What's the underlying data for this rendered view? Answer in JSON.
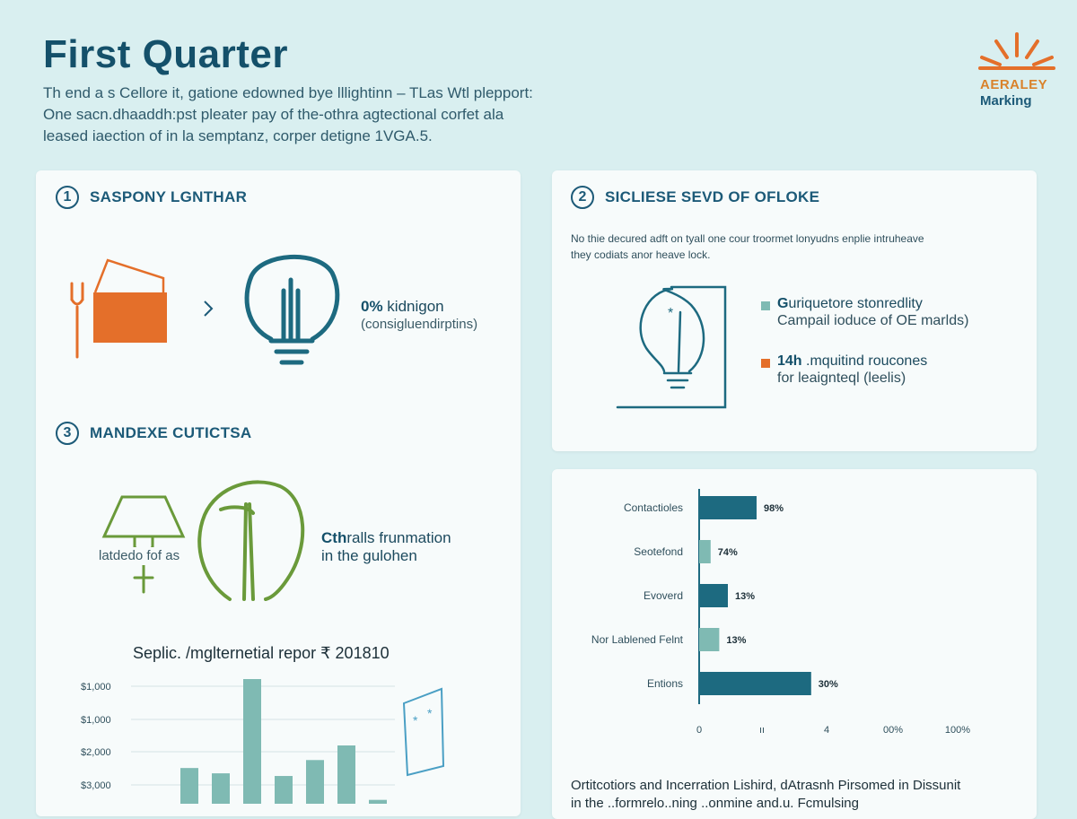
{
  "header": {
    "title": "First Quarter",
    "intro_lines": [
      "Th end a s Cellore it, gatione edowned bye lllightinn – TLas Wtl plepport:",
      "One sacn.dhaaddh:pst pleater pay of the-othra agtectional corfet ala",
      "leased iaection of in la semptanz, corper detigne 1VGA.5."
    ]
  },
  "logo": {
    "line1": "AERALEY",
    "line2": "Marking",
    "colors": {
      "rays": "#e46f2a",
      "line1": "#d9822b",
      "line2": "#1c5a78"
    }
  },
  "section1": {
    "number": "1",
    "title": "SASPONY LGNTHAR",
    "stat_value": "0%",
    "stat_text": " kidnigon",
    "stat_sub": "(consigluendirptins)",
    "icons": [
      "fork-icon",
      "box-icon",
      "chevron-right-icon",
      "lightbulb-icon"
    ]
  },
  "section2": {
    "number": "2",
    "title": "SICLIESE SEVD OF OFLOKE",
    "description_lines": [
      "No thie decured adft on tyall one cour troormet lonyudns enplie intruheave",
      "they codiats anor heave lock."
    ],
    "legend": [
      {
        "color": "#7fbab3",
        "lead": "G",
        "text": "uriquetore stonredlity",
        "sub": "Campail ioduce of OE marlds)"
      },
      {
        "color": "#e46f2a",
        "lead": "14h",
        "text": " .mquitind roucones",
        "sub": "for leaignteql (leelis)"
      }
    ]
  },
  "section3": {
    "number": "3",
    "title": "MANDEXE CUTICTSA",
    "sign_label": "latdedo fof as",
    "text_bold": "Cth",
    "text_rest": "ralls frunmation",
    "text_line2": "in the gulohen",
    "report_title": "Seplic. /mglternetial repor ₹ 201810"
  },
  "footer": {
    "line1": "Ortitcotiors and Incerration Lishird, dAtrasnh Pirsomed in Dissunit",
    "line2": "in the ..formrelo..ning ..onmine and.u. Fcmulsing"
  },
  "chart_data": [
    {
      "type": "bar",
      "orientation": "horizontal",
      "categories": [
        "Contactioles",
        "Seotefond",
        "Evoverd",
        "Nor Lablened Felnt",
        "Entions"
      ],
      "values": [
        98,
        74,
        13,
        13,
        30
      ],
      "value_labels": [
        "98%",
        "74%",
        "13%",
        "13%",
        "30%"
      ],
      "bar_lengths_pct": [
        20,
        4,
        10,
        7,
        39
      ],
      "colors": [
        "#1d6a80",
        "#7fbab3",
        "#1d6a80",
        "#7fbab3",
        "#1d6a80"
      ],
      "x_tick_labels": [
        "0",
        "ıı",
        "4",
        "00%",
        "100%"
      ],
      "grid": false
    },
    {
      "type": "bar",
      "orientation": "vertical",
      "title": "Seplic. /mglternetial repor ₹ 201810",
      "y_tick_labels": [
        "$1,000",
        "$1,000",
        "$2,000",
        "$3,000"
      ],
      "values": [
        0.06,
        0.33,
        0.29,
        1.0,
        0.27,
        0.39,
        0.5,
        0.09
      ],
      "colors": [
        "#7fbab3",
        "#7fbab3",
        "#7fbab3",
        "#7fbab3",
        "#7fbab3",
        "#7fbab3",
        "#7fbab3",
        "#7fbab3"
      ],
      "grid": true
    }
  ]
}
